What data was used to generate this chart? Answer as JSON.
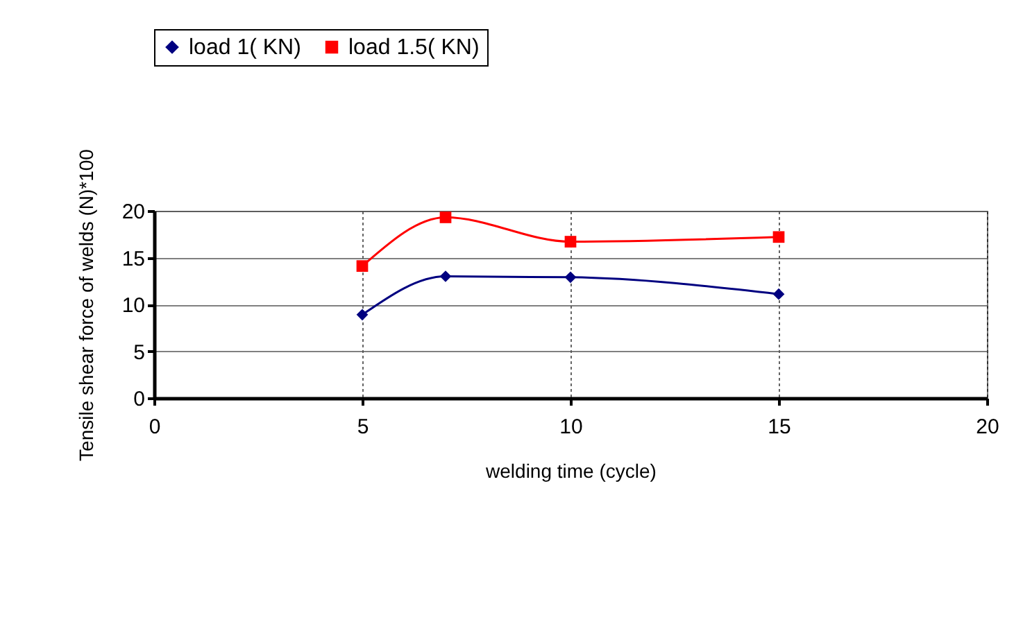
{
  "chart_data": {
    "type": "line",
    "xlabel": "welding time  (cycle)",
    "ylabel": "Tensile shear force of welds (N)*100",
    "x": [
      5,
      7,
      10,
      15
    ],
    "series": [
      {
        "name": "load 1( KN)",
        "color": "#000080",
        "marker": "diamond",
        "values": [
          8.9,
          13.0,
          12.9,
          11.1
        ]
      },
      {
        "name": "load 1.5( KN)",
        "color": "#ff0000",
        "marker": "square",
        "values": [
          14.1,
          19.3,
          16.7,
          17.2
        ]
      }
    ],
    "xlim": [
      0,
      20
    ],
    "xticks": [
      0,
      5,
      10,
      15,
      20
    ],
    "ylim": [
      0,
      20
    ],
    "yticks": [
      0,
      5,
      10,
      15,
      20
    ],
    "grid": true,
    "legend": "top",
    "line_style": "solid"
  }
}
